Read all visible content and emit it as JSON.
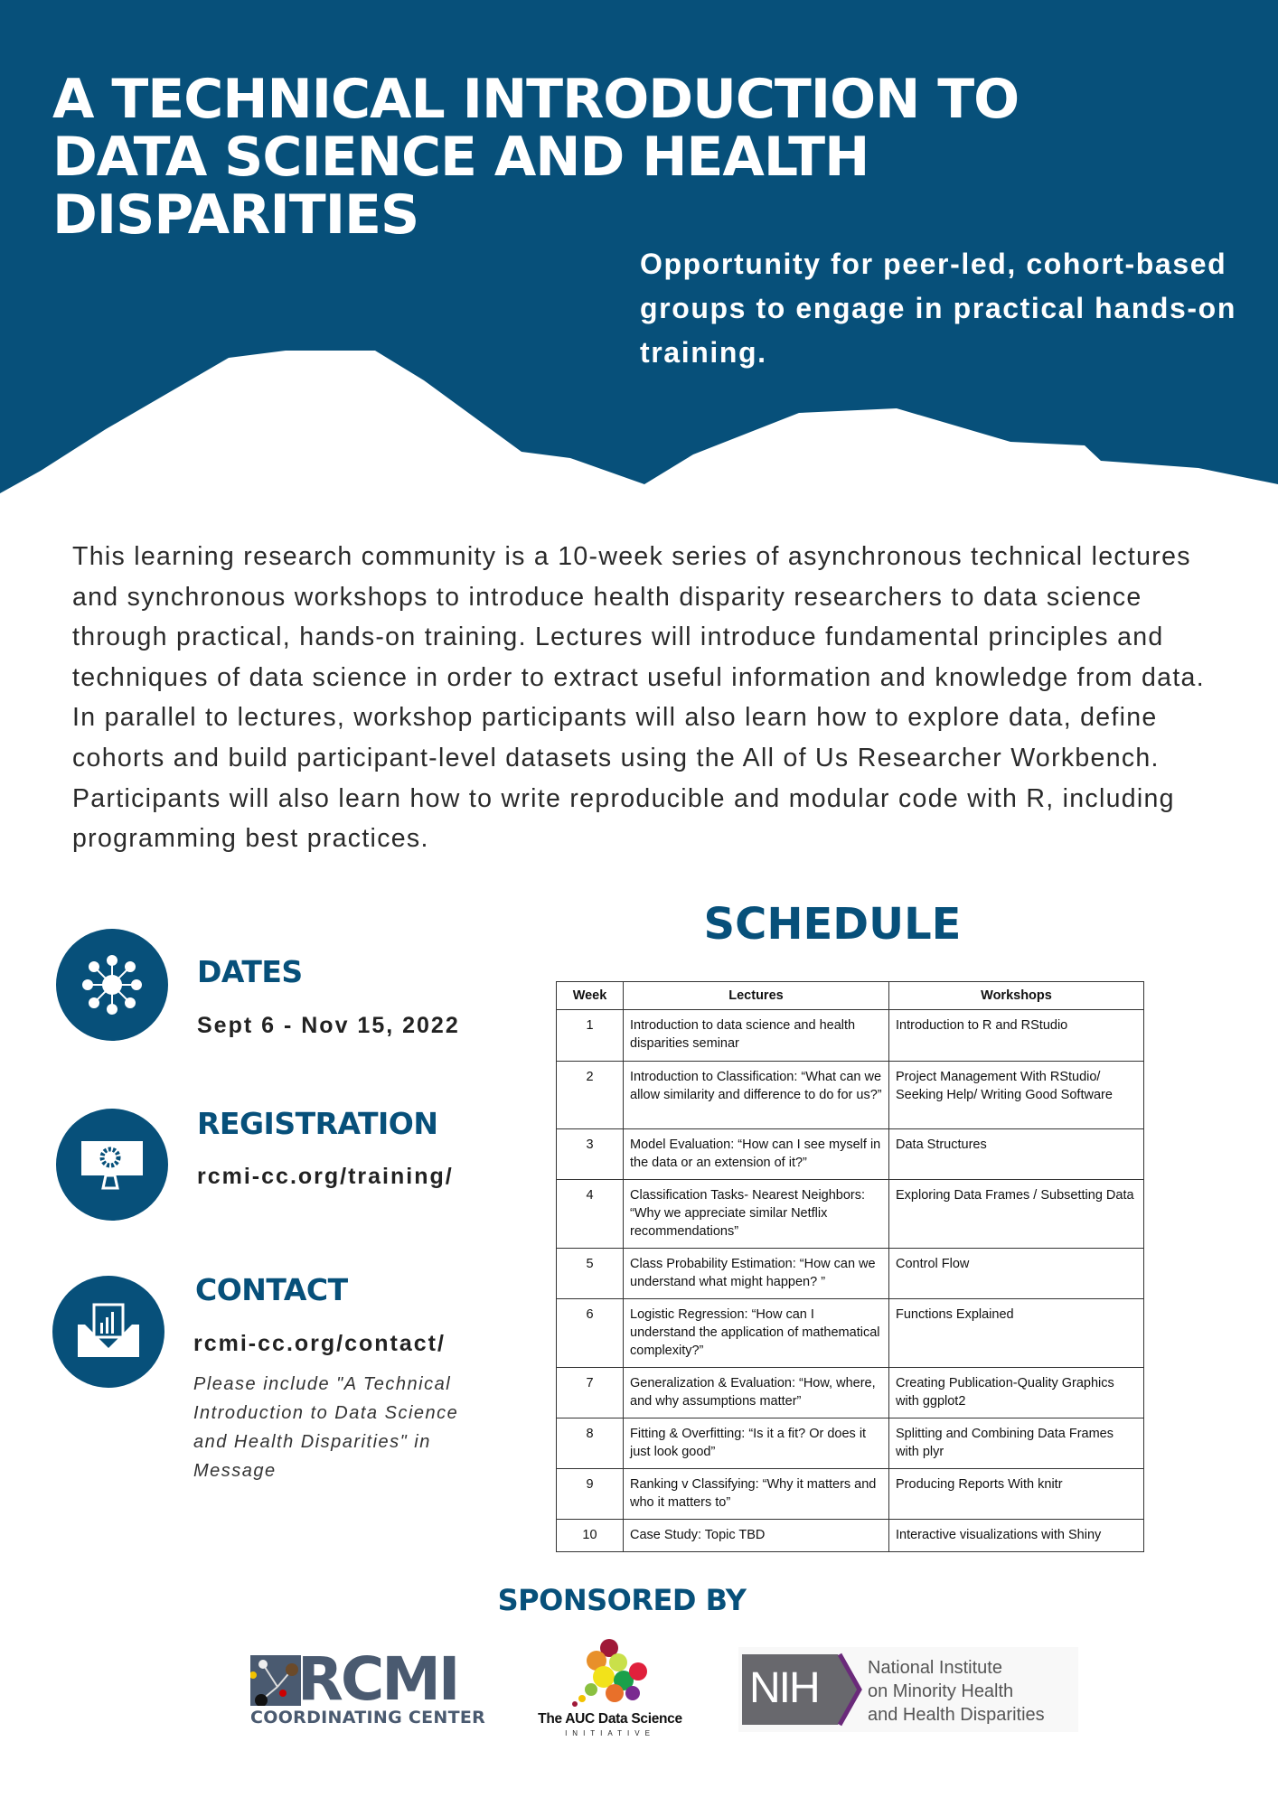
{
  "colors": {
    "brand_blue": "#07507a",
    "text": "#2a2a2a"
  },
  "header": {
    "title": "A TECHNICAL INTRODUCTION TO DATA SCIENCE AND HEALTH DISPARITIES",
    "subtitle": "Opportunity for peer-led, cohort-based groups to engage in practical hands-on training."
  },
  "intro": "This learning research community is a 10-week series of asynchronous technical lectures and synchronous workshops to introduce health disparity researchers to data science through practical, hands-on training. Lectures will introduce fundamental principles and techniques of data science in order to extract useful information and knowledge from data. In parallel to lectures, workshop participants will also learn how to explore data, define cohorts and build participant-level datasets using the All of Us Researcher Workbench. Participants will also learn how to write reproducible and modular code with R, including programming best practices.",
  "info": {
    "dates": {
      "heading": "DATES",
      "value": "Sept 6 -  Nov 15, 2022",
      "icon": "network-icon"
    },
    "registration": {
      "heading": "REGISTRATION",
      "value": "rcmi-cc.org/training/",
      "icon": "monitor-gear-icon"
    },
    "contact": {
      "heading": "CONTACT",
      "value": "rcmi-cc.org/contact/",
      "icon": "envelope-chart-icon",
      "note": "Please include \"A Technical Introduction to Data Science and Health Disparities\" in Message"
    }
  },
  "schedule": {
    "title": "SCHEDULE",
    "headers": [
      "Week",
      "Lectures",
      "Workshops"
    ],
    "rows": [
      {
        "week": "1",
        "lecture": "Introduction to data science and health disparities seminar",
        "workshop": "Introduction to R and RStudio"
      },
      {
        "week": "2",
        "lecture": "Introduction to Classification: “What can we allow similarity and difference to do for us?”",
        "workshop": "Project Management With RStudio/ Seeking Help/ Writing Good Software"
      },
      {
        "week": "3",
        "lecture": "Model Evaluation: “How can I see myself in the data or an extension of it?”",
        "workshop": "Data Structures"
      },
      {
        "week": "4",
        "lecture": "Classification Tasks- Nearest Neighbors: “Why we appreciate similar Netflix recommendations”",
        "workshop": "Exploring Data Frames / Subsetting Data"
      },
      {
        "week": "5",
        "lecture": "Class Probability Estimation: “How can we understand what might happen? ”",
        "workshop": "Control Flow"
      },
      {
        "week": "6",
        "lecture": "Logistic Regression: “How can I understand the application of mathematical complexity?”",
        "workshop": "Functions Explained"
      },
      {
        "week": "7",
        "lecture": "Generalization & Evaluation: “How, where, and why assumptions matter”",
        "workshop": "Creating Publication-Quality Graphics with ggplot2"
      },
      {
        "week": "8",
        "lecture": "Fitting & Overfitting: “Is it a fit? Or does it just look good”",
        "workshop": "Splitting and Combining Data Frames with plyr"
      },
      {
        "week": "9",
        "lecture": "Ranking v Classifying: “Why it matters and who it matters to”",
        "workshop": "Producing Reports With knitr"
      },
      {
        "week": "10",
        "lecture": "Case Study: Topic TBD",
        "workshop": "Interactive visualizations with Shiny"
      }
    ]
  },
  "sponsors": {
    "heading": "SPONSORED BY",
    "rcmi": {
      "main": "RCMI",
      "sub": "COORDINATING CENTER"
    },
    "auc": {
      "main": "The AUC Data Science",
      "sub": "INITIATIVE"
    },
    "nih": {
      "mark": "NIH",
      "lines": [
        "National Institute",
        "on Minority Health",
        "and Health Disparities"
      ]
    }
  }
}
